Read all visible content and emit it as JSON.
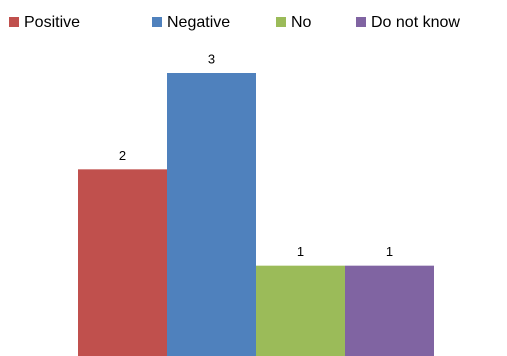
{
  "chart_data": {
    "type": "bar",
    "series": [
      {
        "name": "Positive",
        "color": "#c0504d",
        "values": [
          2
        ]
      },
      {
        "name": "Negative",
        "color": "#4f81bd",
        "values": [
          3
        ]
      },
      {
        "name": "No",
        "color": "#9bbb59",
        "values": [
          1
        ]
      },
      {
        "name": "Do not know",
        "color": "#8064a2",
        "values": [
          1
        ]
      }
    ],
    "legend": "top"
  }
}
